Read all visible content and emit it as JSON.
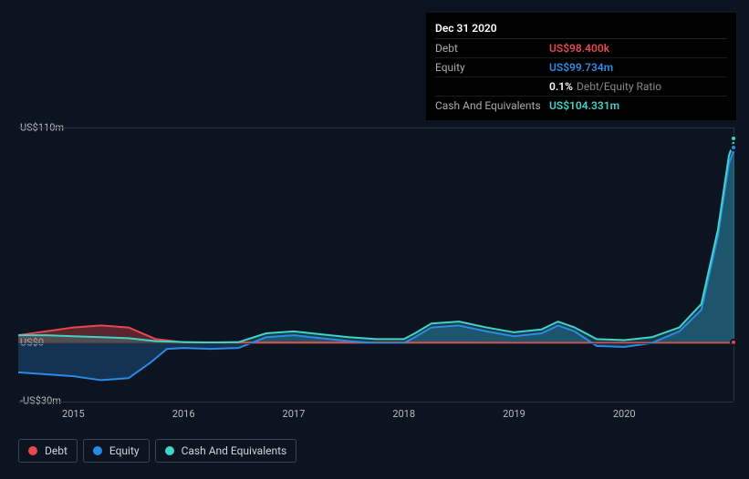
{
  "tooltip": {
    "date": "Dec 31 2020",
    "rows": [
      {
        "label": "Debt",
        "value": "US$98.400k",
        "color": "#e8484a"
      },
      {
        "label": "Equity",
        "value": "US$99.734m",
        "color": "#2a8ae6"
      },
      {
        "label": "",
        "value": "0.1%",
        "suffix": "Debt/Equity Ratio",
        "color": "#ffffff"
      },
      {
        "label": "Cash And Equivalents",
        "value": "US$104.331m",
        "color": "#3fd4c7"
      }
    ]
  },
  "chart": {
    "type": "area",
    "background_color": "#0d1421",
    "grid_color": "#2a3340",
    "ylim_top": 110,
    "ylim_bottom": -30,
    "y_ticks": [
      {
        "v": 110,
        "label": "US$110m"
      },
      {
        "v": 0,
        "label": "US$0"
      },
      {
        "v": -30,
        "label": "-US$30m"
      }
    ],
    "xlim": [
      2014.5,
      2021.0
    ],
    "x_ticks": [
      2015,
      2016,
      2017,
      2018,
      2019,
      2020
    ],
    "series": {
      "debt": {
        "color": "#e8484a",
        "fill": "rgba(232,72,74,0.35)",
        "data": [
          [
            2014.5,
            4
          ],
          [
            2014.75,
            6
          ],
          [
            2015.0,
            8
          ],
          [
            2015.25,
            9
          ],
          [
            2015.5,
            8
          ],
          [
            2015.75,
            2
          ],
          [
            2016.0,
            0.4
          ],
          [
            2016.5,
            0.3
          ],
          [
            2017.0,
            0.3
          ],
          [
            2017.5,
            0.25
          ],
          [
            2018.0,
            0.2
          ],
          [
            2018.5,
            0.2
          ],
          [
            2019.0,
            0.15
          ],
          [
            2019.5,
            0.12
          ],
          [
            2020.0,
            0.1
          ],
          [
            2020.5,
            0.1
          ],
          [
            2020.9,
            0.1
          ],
          [
            2021.0,
            0.1
          ]
        ]
      },
      "equity": {
        "color": "#2a8ae6",
        "fill": "rgba(42,138,230,0.25)",
        "data": [
          [
            2014.5,
            -15
          ],
          [
            2014.75,
            -16
          ],
          [
            2015.0,
            -17
          ],
          [
            2015.25,
            -19
          ],
          [
            2015.5,
            -18
          ],
          [
            2015.7,
            -10
          ],
          [
            2015.85,
            -3
          ],
          [
            2016.0,
            -2.5
          ],
          [
            2016.25,
            -3
          ],
          [
            2016.5,
            -2.5
          ],
          [
            2016.75,
            3
          ],
          [
            2017.0,
            4
          ],
          [
            2017.25,
            2.5
          ],
          [
            2017.5,
            1
          ],
          [
            2017.75,
            0
          ],
          [
            2018.0,
            0
          ],
          [
            2018.1,
            3
          ],
          [
            2018.25,
            8
          ],
          [
            2018.5,
            9
          ],
          [
            2018.75,
            6
          ],
          [
            2019.0,
            3.5
          ],
          [
            2019.25,
            5
          ],
          [
            2019.4,
            9
          ],
          [
            2019.55,
            6
          ],
          [
            2019.75,
            -1.5
          ],
          [
            2020.0,
            -2
          ],
          [
            2020.25,
            0
          ],
          [
            2020.5,
            6
          ],
          [
            2020.7,
            17
          ],
          [
            2020.85,
            55
          ],
          [
            2020.95,
            92
          ],
          [
            2021.0,
            99.7
          ]
        ]
      },
      "cash": {
        "color": "#3fd4c7",
        "fill": "rgba(63,212,199,0.22)",
        "data": [
          [
            2014.5,
            4
          ],
          [
            2014.75,
            4
          ],
          [
            2015.0,
            3.5
          ],
          [
            2015.25,
            3
          ],
          [
            2015.5,
            2.5
          ],
          [
            2015.75,
            1
          ],
          [
            2016.0,
            0.5
          ],
          [
            2016.25,
            0.3
          ],
          [
            2016.5,
            0.5
          ],
          [
            2016.75,
            5
          ],
          [
            2017.0,
            6
          ],
          [
            2017.25,
            4.5
          ],
          [
            2017.5,
            3
          ],
          [
            2017.75,
            2
          ],
          [
            2018.0,
            2
          ],
          [
            2018.1,
            5
          ],
          [
            2018.25,
            10
          ],
          [
            2018.5,
            11
          ],
          [
            2018.75,
            8
          ],
          [
            2019.0,
            5.5
          ],
          [
            2019.25,
            7
          ],
          [
            2019.4,
            11
          ],
          [
            2019.55,
            8
          ],
          [
            2019.75,
            2
          ],
          [
            2020.0,
            1.5
          ],
          [
            2020.25,
            3
          ],
          [
            2020.5,
            8
          ],
          [
            2020.7,
            20
          ],
          [
            2020.85,
            58
          ],
          [
            2020.95,
            96
          ],
          [
            2021.0,
            104.3
          ]
        ]
      }
    },
    "end_markers": [
      {
        "series": "cash",
        "x": 2021.0,
        "y": 104.3,
        "color": "#3fd4c7"
      },
      {
        "series": "equity",
        "x": 2021.0,
        "y": 99.7,
        "color": "#2a8ae6"
      },
      {
        "series": "debt",
        "x": 2021.0,
        "y": 0.1,
        "color": "#e8484a"
      }
    ],
    "label_fontsize": 11,
    "label_color": "#bbbbbb"
  },
  "legend": {
    "items": [
      {
        "key": "debt",
        "label": "Debt",
        "color": "#e8484a"
      },
      {
        "key": "equity",
        "label": "Equity",
        "color": "#2a8ae6"
      },
      {
        "key": "cash",
        "label": "Cash And Equivalents",
        "color": "#3fd4c7"
      }
    ]
  }
}
